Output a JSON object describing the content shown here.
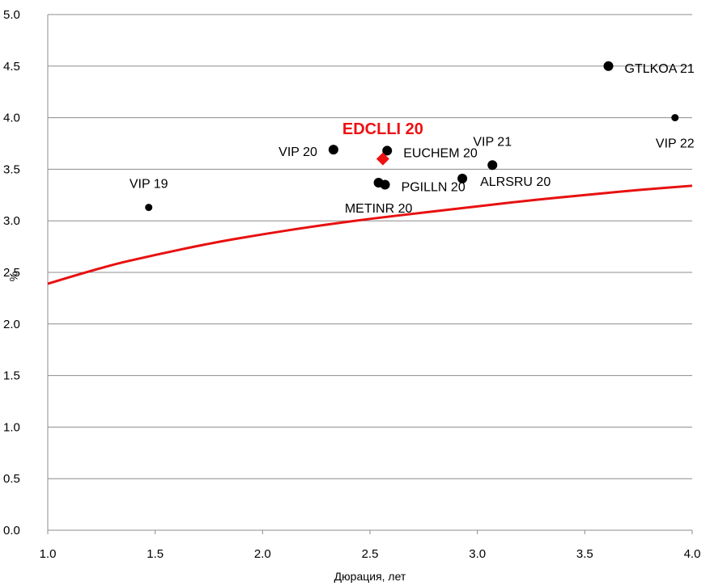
{
  "chart_data": {
    "type": "scatter",
    "xlabel": "Дюрация, лет",
    "ylabel": "%",
    "xlim": [
      1.0,
      4.0
    ],
    "ylim": [
      0.0,
      5.0
    ],
    "xticks": [
      "1.0",
      "1.5",
      "2.0",
      "2.5",
      "3.0",
      "3.5",
      "4.0"
    ],
    "yticks": [
      "0.0",
      "0.5",
      "1.0",
      "1.5",
      "2.0",
      "2.5",
      "3.0",
      "3.5",
      "4.0",
      "4.5",
      "5.0"
    ],
    "grid": true,
    "colors": {
      "points": "#000000",
      "highlight": "#ee1111",
      "curve": "#e81010",
      "grid": "#8c8c8c"
    },
    "points": [
      {
        "label": "VIP 19",
        "x": 1.47,
        "y": 3.13,
        "size": "small",
        "label_pos": "above"
      },
      {
        "label": "VIP 20",
        "x": 2.33,
        "y": 3.69,
        "size": "large",
        "label_pos": "left"
      },
      {
        "label": "EUCHEM 20",
        "x": 2.58,
        "y": 3.68,
        "size": "large",
        "label_pos": "right"
      },
      {
        "label": "METINR 20",
        "x": 2.54,
        "y": 3.37,
        "size": "large",
        "label_pos": "below"
      },
      {
        "label": "PGILLN 20",
        "x": 2.57,
        "y": 3.35,
        "size": "large",
        "label_pos": "right"
      },
      {
        "label": "ALRSRU 20",
        "x": 2.93,
        "y": 3.41,
        "size": "large",
        "label_pos": "below-right"
      },
      {
        "label": "VIP 21",
        "x": 3.07,
        "y": 3.54,
        "size": "large",
        "label_pos": "above"
      },
      {
        "label": "GTLKOA 21",
        "x": 3.61,
        "y": 4.5,
        "size": "large",
        "label_pos": "right"
      },
      {
        "label": "VIP 22",
        "x": 3.92,
        "y": 4.0,
        "size": "small",
        "label_pos": "below"
      }
    ],
    "highlight": {
      "label": "EDCLLI 20",
      "x": 2.56,
      "y": 3.6,
      "marker": "diamond"
    },
    "curve": {
      "type": "log-fit",
      "points": [
        [
          1.0,
          2.39
        ],
        [
          1.25,
          2.55
        ],
        [
          1.5,
          2.67
        ],
        [
          1.75,
          2.78
        ],
        [
          2.0,
          2.87
        ],
        [
          2.25,
          2.95
        ],
        [
          2.5,
          3.02
        ],
        [
          2.75,
          3.08
        ],
        [
          3.0,
          3.14
        ],
        [
          3.25,
          3.2
        ],
        [
          3.5,
          3.25
        ],
        [
          3.75,
          3.3
        ],
        [
          4.0,
          3.34
        ]
      ]
    }
  }
}
